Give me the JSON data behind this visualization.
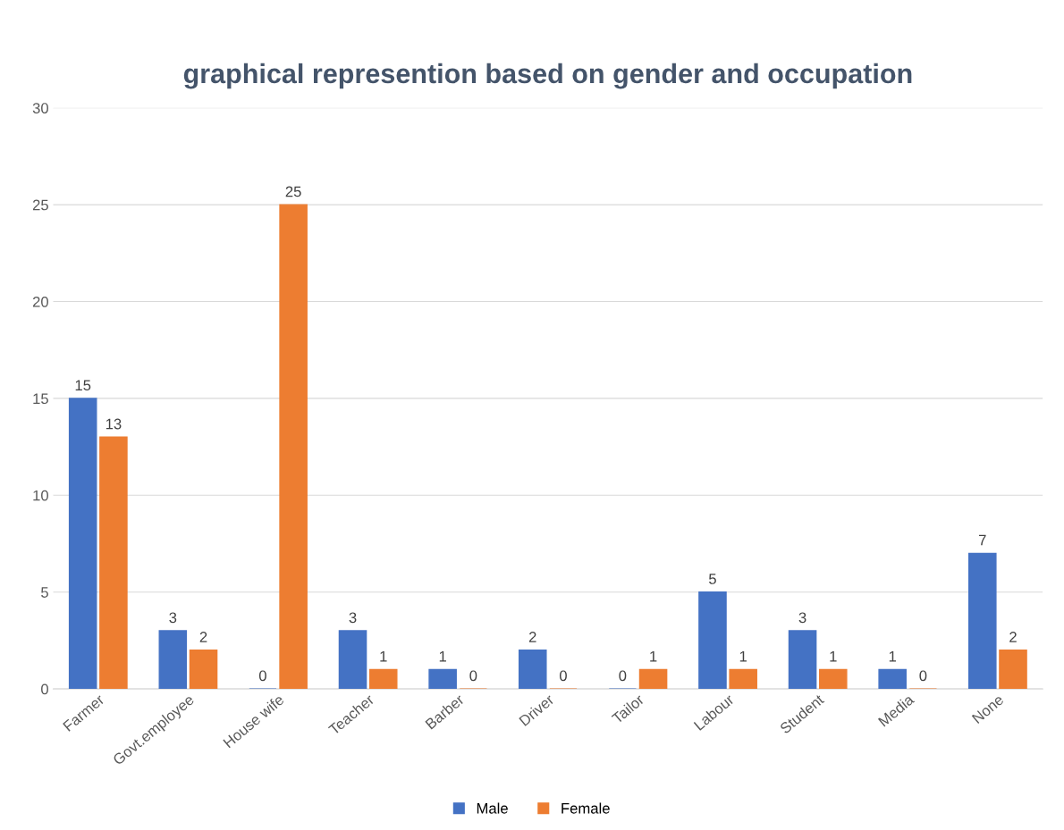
{
  "chart_data": {
    "type": "bar",
    "title": "graphical represention based on gender and occupation",
    "categories": [
      "Farmer",
      "Govt.employee",
      "House wife",
      "Teacher",
      "Barber",
      "Driver",
      "Tailor",
      "Labour",
      "Student",
      "Media",
      "None"
    ],
    "series": [
      {
        "name": "Male",
        "color": "#4472c4",
        "values": [
          15,
          3,
          0,
          3,
          1,
          2,
          0,
          5,
          3,
          1,
          7
        ]
      },
      {
        "name": "Female",
        "color": "#ed7d31",
        "values": [
          13,
          2,
          25,
          1,
          0,
          0,
          1,
          1,
          1,
          0,
          2
        ]
      }
    ],
    "ylim": [
      0,
      30
    ],
    "yticks": [
      0,
      5,
      10,
      15,
      20,
      25,
      30
    ],
    "grid": "y",
    "legend": "bottom",
    "data_labels": true
  }
}
